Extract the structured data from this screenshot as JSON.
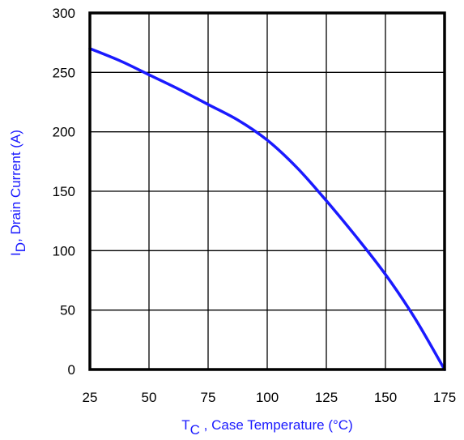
{
  "chart_data": {
    "type": "line",
    "title": "",
    "xlabel": {
      "symbol": "T",
      "subscript": "C",
      "text": " , Case Temperature (°C)"
    },
    "ylabel": {
      "symbol": "I",
      "subscript": "D",
      "text": ",  Drain Current (A)"
    },
    "xlim": [
      25,
      175
    ],
    "ylim": [
      0,
      300
    ],
    "xticks": [
      25,
      50,
      75,
      100,
      125,
      150,
      175
    ],
    "yticks": [
      0,
      50,
      100,
      150,
      200,
      250,
      300
    ],
    "grid": true,
    "series": [
      {
        "x": [
          25,
          37.5,
          50,
          62.5,
          75,
          87.5,
          100,
          112.5,
          125,
          137.5,
          150,
          162.5,
          175
        ],
        "y": [
          270,
          260,
          248,
          236,
          223,
          210,
          193,
          170,
          142,
          112,
          80,
          43,
          0
        ]
      }
    ]
  },
  "colors": {
    "curve": "#1a1aff",
    "axis_label": "#1a1aff",
    "grid": "#000000",
    "frame": "#000000",
    "tick_text": "#000000"
  }
}
